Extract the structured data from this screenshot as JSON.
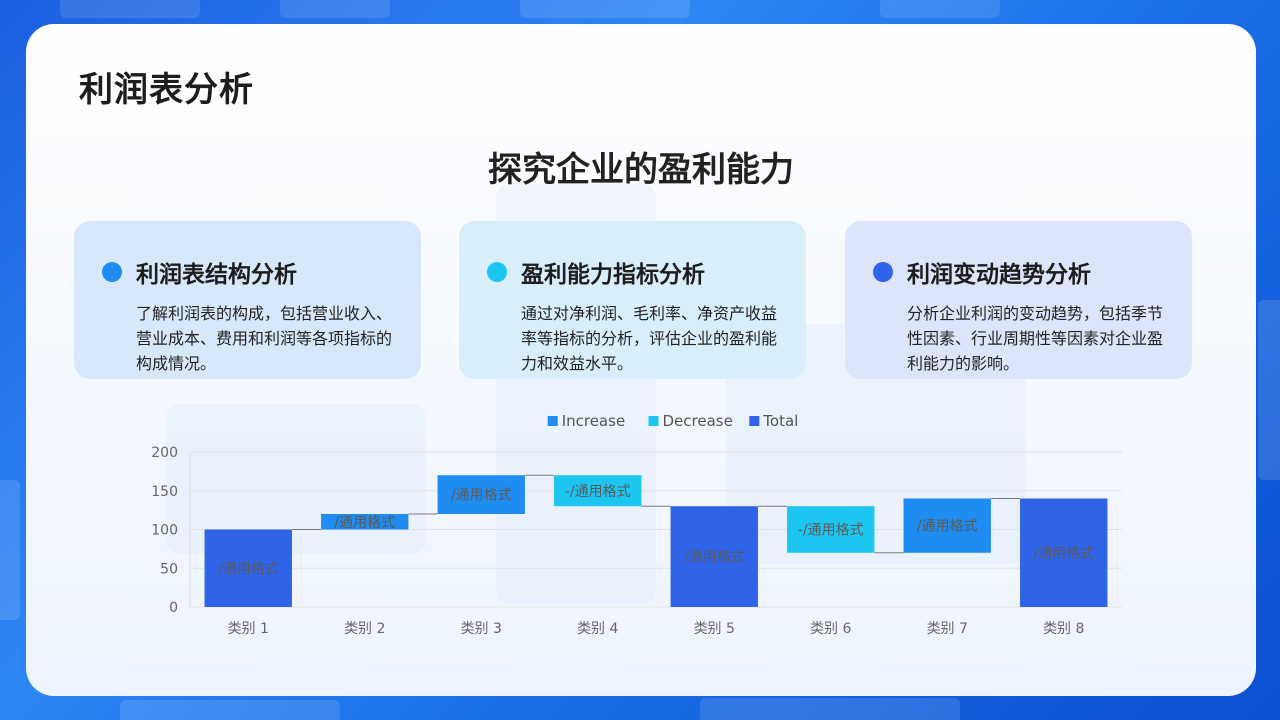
{
  "page_title": "利润表分析",
  "subtitle": "探究企业的盈利能力",
  "cards": [
    {
      "title": "利润表结构分析",
      "desc": "了解利润表的构成，包括营业收入、营业成本、费用和利润等各项指标的构成情况。",
      "dot_color": "#1e8cf0",
      "bg_color": "#d8e8fb"
    },
    {
      "title": "盈利能力指标分析",
      "desc": "通过对净利润、毛利率、净资产收益率等指标的分析，评估企业的盈利能力和效益水平。",
      "dot_color": "#1cc6f0",
      "bg_color": "#d8eefb"
    },
    {
      "title": "利润变动趋势分析",
      "desc": "分析企业利润的变动趋势，包括季节性因素、行业周期性等因素对企业盈利能力的影响。",
      "dot_color": "#2f63e8",
      "bg_color": "#dde5fb"
    }
  ],
  "chart_data": {
    "type": "bar",
    "subtype": "waterfall",
    "legend": [
      {
        "name": "Increase",
        "color": "#1e8cf0"
      },
      {
        "name": "Decrease",
        "color": "#1cc6f0"
      },
      {
        "name": "Total",
        "color": "#2f63e8"
      }
    ],
    "legend_position": "top",
    "categories": [
      "类别 1",
      "类别 2",
      "类别 3",
      "类别 4",
      "类别 5",
      "类别 6",
      "类别 7",
      "类别 8"
    ],
    "bars": [
      {
        "kind": "Total",
        "start": 0,
        "end": 100,
        "label": "/通用格式"
      },
      {
        "kind": "Increase",
        "start": 100,
        "end": 120,
        "label": "/通用格式"
      },
      {
        "kind": "Increase",
        "start": 120,
        "end": 170,
        "label": "/通用格式"
      },
      {
        "kind": "Decrease",
        "start": 170,
        "end": 130,
        "label": "-/通用格式"
      },
      {
        "kind": "Total",
        "start": 0,
        "end": 130,
        "label": "/通用格式"
      },
      {
        "kind": "Decrease",
        "start": 130,
        "end": 70,
        "label": "-/通用格式"
      },
      {
        "kind": "Increase",
        "start": 70,
        "end": 140,
        "label": "/通用格式"
      },
      {
        "kind": "Total",
        "start": 0,
        "end": 140,
        "label": "/通用格式"
      }
    ],
    "ylim": [
      0,
      200
    ],
    "yticks": [
      0,
      50,
      100,
      150,
      200
    ],
    "grid": true,
    "connectors": true
  }
}
